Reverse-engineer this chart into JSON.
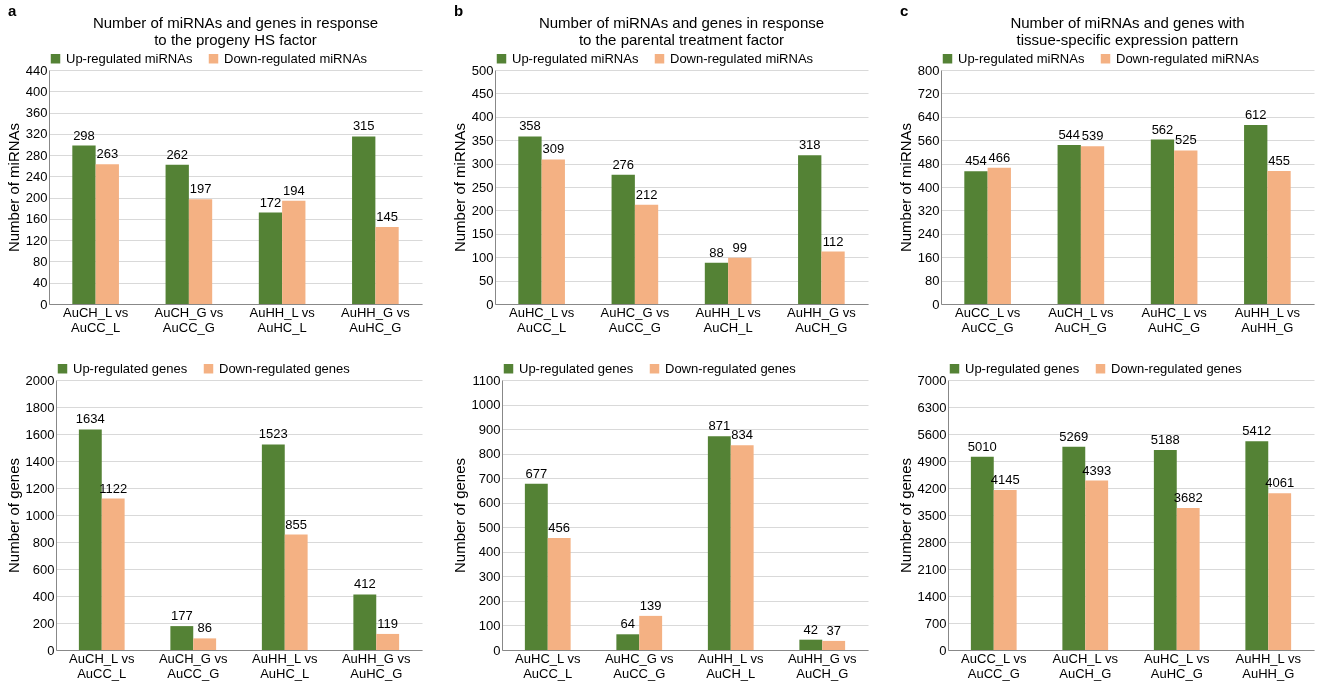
{
  "chart_data": [
    {
      "type": "bar",
      "annotations": [
        "a"
      ],
      "title": "Number of miRNAs and genes in response to the progeny HS factor",
      "ylabel": "Number of miRNAs",
      "categories": [
        "AuCH_L vs AuCC_L",
        "AuCH_G vs AuCC_G",
        "AuHH_L vs AuHC_L",
        "AuHH_G vs AuHC_G"
      ],
      "series": [
        {
          "name": "Up-regulated miRNAs",
          "color": "#548235",
          "values": [
            298,
            262,
            172,
            315
          ]
        },
        {
          "name": "Down-regulated miRNAs",
          "color": "#f4b183",
          "values": [
            263,
            197,
            194,
            145
          ]
        }
      ],
      "ylim": [
        0,
        440
      ],
      "yticks": [
        0,
        40,
        80,
        120,
        160,
        200,
        240,
        280,
        320,
        360,
        400,
        440
      ],
      "grid": "y",
      "legend": "top",
      "data_labels": true
    },
    {
      "type": "bar",
      "annotations": [
        "b"
      ],
      "title": "Number of miRNAs and genes in response to the parental treatment factor",
      "ylabel": "Number of miRNAs",
      "categories": [
        "AuHC_L vs AuCC_L",
        "AuHC_G vs AuCC_G",
        "AuHH_L vs AuCH_L",
        "AuHH_G vs AuCH_G"
      ],
      "series": [
        {
          "name": "Up-regulated miRNAs",
          "color": "#548235",
          "values": [
            358,
            276,
            88,
            318
          ]
        },
        {
          "name": "Down-regulated miRNAs",
          "color": "#f4b183",
          "values": [
            309,
            212,
            99,
            112
          ]
        }
      ],
      "ylim": [
        0,
        500
      ],
      "yticks": [
        0,
        50,
        100,
        150,
        200,
        250,
        300,
        350,
        400,
        450,
        500
      ],
      "grid": "y",
      "legend": "top",
      "data_labels": true
    },
    {
      "type": "bar",
      "annotations": [
        "c"
      ],
      "title": "Number of miRNAs and genes with tissue-specific expression pattern",
      "ylabel": "Number of miRNAs",
      "categories": [
        "AuCC_L vs AuCC_G",
        "AuCH_L vs AuCH_G",
        "AuHC_L vs AuHC_G",
        "AuHH_L vs AuHH_G"
      ],
      "series": [
        {
          "name": "Up-regulated miRNAs",
          "color": "#548235",
          "values": [
            454,
            544,
            562,
            612
          ]
        },
        {
          "name": "Down-regulated miRNAs",
          "color": "#f4b183",
          "values": [
            466,
            539,
            525,
            455
          ]
        }
      ],
      "ylim": [
        0,
        800
      ],
      "yticks": [
        0,
        80,
        160,
        240,
        320,
        400,
        480,
        560,
        640,
        720,
        800
      ],
      "grid": "y",
      "legend": "top",
      "data_labels": true
    },
    {
      "type": "bar",
      "ylabel": "Number of genes",
      "categories": [
        "AuCH_L vs AuCC_L",
        "AuCH_G vs AuCC_G",
        "AuHH_L vs AuHC_L",
        "AuHH_G vs AuHC_G"
      ],
      "series": [
        {
          "name": "Up-regulated genes",
          "color": "#548235",
          "values": [
            1634,
            177,
            1523,
            412
          ]
        },
        {
          "name": "Down-regulated genes",
          "color": "#f4b183",
          "values": [
            1122,
            86,
            855,
            119
          ]
        }
      ],
      "ylim": [
        0,
        2000
      ],
      "yticks": [
        0,
        200,
        400,
        600,
        800,
        1000,
        1200,
        1400,
        1600,
        1800,
        2000
      ],
      "grid": "y",
      "legend": "top",
      "data_labels": true
    },
    {
      "type": "bar",
      "ylabel": "Number of genes",
      "categories": [
        "AuHC_L vs AuCC_L",
        "AuHC_G vs AuCC_G",
        "AuHH_L vs AuCH_L",
        "AuHH_G vs AuCH_G"
      ],
      "series": [
        {
          "name": "Up-regulated genes",
          "color": "#548235",
          "values": [
            677,
            64,
            871,
            42
          ]
        },
        {
          "name": "Down-regulated genes",
          "color": "#f4b183",
          "values": [
            456,
            139,
            834,
            37
          ]
        }
      ],
      "ylim": [
        0,
        1100
      ],
      "yticks": [
        0,
        100,
        200,
        300,
        400,
        500,
        600,
        700,
        800,
        900,
        1000,
        1100
      ],
      "grid": "y",
      "legend": "top",
      "data_labels": true
    },
    {
      "type": "bar",
      "ylabel": "Number of genes",
      "categories": [
        "AuCC_L vs AuCC_G",
        "AuCH_L vs AuCH_G",
        "AuHC_L vs AuHC_G",
        "AuHH_L vs AuHH_G"
      ],
      "series": [
        {
          "name": "Up-regulated genes",
          "color": "#548235",
          "values": [
            5010,
            5269,
            5188,
            5412
          ]
        },
        {
          "name": "Down-regulated genes",
          "color": "#f4b183",
          "values": [
            4145,
            4393,
            3682,
            4061
          ]
        }
      ],
      "ylim": [
        0,
        7000
      ],
      "yticks": [
        0,
        700,
        1400,
        2100,
        2800,
        3500,
        4200,
        4900,
        5600,
        6300,
        7000
      ],
      "grid": "y",
      "legend": "top",
      "data_labels": true
    }
  ]
}
